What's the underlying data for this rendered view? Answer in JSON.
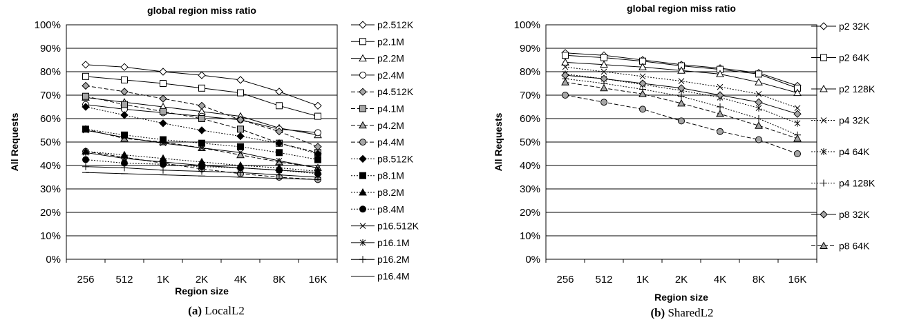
{
  "chart_data": [
    {
      "type": "line",
      "title": "global region miss ratio",
      "xlabel": "Region size",
      "ylabel": "All Requests",
      "categories": [
        "256",
        "512",
        "1K",
        "2K",
        "4K",
        "8K",
        "16K"
      ],
      "ylim": [
        0,
        100
      ],
      "yticks": [
        "0%",
        "10%",
        "20%",
        "30%",
        "40%",
        "50%",
        "60%",
        "70%",
        "80%",
        "90%",
        "100%"
      ],
      "grid": true,
      "legend": "right",
      "caption_label": "(a)",
      "caption_text": " LocalL2",
      "series": [
        {
          "name": "p2.512K",
          "marker": "diamond",
          "fill": "none",
          "dash": "solid",
          "values": [
            83,
            82,
            80,
            78.5,
            76.5,
            71.5,
            65.5
          ]
        },
        {
          "name": "p2.1M",
          "marker": "square",
          "fill": "none",
          "dash": "solid",
          "values": [
            78,
            76.5,
            75,
            73,
            71,
            65.5,
            61
          ]
        },
        {
          "name": "p2.2M",
          "marker": "triangle",
          "fill": "none",
          "dash": "solid",
          "values": [
            69,
            67,
            65,
            63,
            61,
            56,
            53
          ]
        },
        {
          "name": "p2.4M",
          "marker": "circle",
          "fill": "none",
          "dash": "solid",
          "values": [
            66,
            64,
            62.5,
            61,
            59.5,
            55.5,
            54
          ]
        },
        {
          "name": "p4.512K",
          "marker": "diamond",
          "fill": "gray",
          "dash": "dashed",
          "values": [
            74,
            71.5,
            68.5,
            65.5,
            59.5,
            54.5,
            48
          ]
        },
        {
          "name": "p4.1M",
          "marker": "square",
          "fill": "gray",
          "dash": "dashed",
          "values": [
            69.5,
            66,
            63,
            60,
            55.5,
            49.5,
            45.5
          ]
        },
        {
          "name": "p4.2M",
          "marker": "triangle",
          "fill": "gray",
          "dash": "dashed",
          "values": [
            55.5,
            51.5,
            50,
            47.5,
            44.5,
            41.5,
            39
          ]
        },
        {
          "name": "p4.4M",
          "marker": "circle",
          "fill": "gray",
          "dash": "dashed",
          "values": [
            46,
            43.5,
            41,
            38.5,
            36.5,
            35,
            34
          ]
        },
        {
          "name": "p8.512K",
          "marker": "diamond",
          "fill": "black",
          "dash": "dotted",
          "values": [
            65,
            61.5,
            58,
            55,
            52.5,
            49.5,
            45
          ]
        },
        {
          "name": "p8.1M",
          "marker": "square",
          "fill": "black",
          "dash": "dotted",
          "values": [
            55.5,
            53,
            51,
            49.5,
            48,
            45.5,
            42.5
          ]
        },
        {
          "name": "p8.2M",
          "marker": "triangle",
          "fill": "black",
          "dash": "dotted",
          "values": [
            46,
            44.5,
            43,
            41.5,
            40,
            39,
            37.5
          ]
        },
        {
          "name": "p8.4M",
          "marker": "circle",
          "fill": "black",
          "dash": "dotted",
          "values": [
            42.5,
            41,
            40.5,
            39.5,
            39,
            38,
            36.5
          ]
        },
        {
          "name": "p16.512K",
          "marker": "x",
          "fill": "none",
          "dash": "solid",
          "values": [
            55,
            52,
            49.5,
            47.5,
            45.5,
            42,
            39
          ]
        },
        {
          "name": "p16.1M",
          "marker": "star",
          "fill": "none",
          "dash": "solid",
          "values": [
            45.5,
            43,
            41.5,
            40,
            39,
            38,
            37
          ]
        },
        {
          "name": "p16.2M",
          "marker": "plus",
          "fill": "none",
          "dash": "solid",
          "values": [
            39.5,
            39,
            38,
            37.5,
            37,
            36,
            35
          ]
        },
        {
          "name": "p16.4M",
          "marker": "dash",
          "fill": "none",
          "dash": "solid",
          "values": [
            37,
            36.5,
            36,
            35.5,
            35,
            34.5,
            34
          ]
        }
      ]
    },
    {
      "type": "line",
      "title": "global region miss ratio",
      "xlabel": "Region size",
      "ylabel": "All Requests",
      "categories": [
        "256",
        "512",
        "1K",
        "2K",
        "4K",
        "8K",
        "16K"
      ],
      "ylim": [
        0,
        100
      ],
      "yticks": [
        "0%",
        "10%",
        "20%",
        "30%",
        "40%",
        "50%",
        "60%",
        "70%",
        "80%",
        "90%",
        "100%"
      ],
      "grid": true,
      "legend": "right",
      "caption_label": "(b)",
      "caption_text": " SharedL2",
      "series": [
        {
          "name": "p2 32K",
          "marker": "diamond",
          "fill": "none",
          "dash": "solid",
          "values": [
            88,
            87,
            85,
            83,
            81.5,
            79.5,
            74
          ]
        },
        {
          "name": "p2 64K",
          "marker": "square",
          "fill": "none",
          "dash": "solid",
          "values": [
            87,
            86,
            84.5,
            82.5,
            81,
            79,
            73
          ]
        },
        {
          "name": "p2 128K",
          "marker": "triangle",
          "fill": "none",
          "dash": "solid",
          "values": [
            84,
            83,
            82,
            80.5,
            79,
            75.5,
            71
          ]
        },
        {
          "name": "p4 32K",
          "marker": "x",
          "fill": "none",
          "dash": "dotted",
          "values": [
            82,
            80,
            78,
            76,
            73.5,
            70.5,
            64.5
          ]
        },
        {
          "name": "p4 64K",
          "marker": "star",
          "fill": "none",
          "dash": "dotted",
          "values": [
            79,
            77,
            74.5,
            72,
            69,
            64.5,
            58
          ]
        },
        {
          "name": "p4 128K",
          "marker": "plus",
          "fill": "none",
          "dash": "dotted",
          "values": [
            77,
            75,
            72.5,
            69.5,
            65,
            60,
            53
          ]
        },
        {
          "name": "p8 32K",
          "marker": "diamond",
          "fill": "gray",
          "dash": "solid",
          "values": [
            78.5,
            77,
            75,
            73,
            70,
            67,
            62
          ]
        },
        {
          "name": "p8 64K",
          "marker": "triangle",
          "fill": "gray",
          "dash": "dashed",
          "values": [
            75.5,
            73,
            70.5,
            66.5,
            62,
            57,
            51.5
          ]
        },
        {
          "name": "",
          "marker": "circle",
          "fill": "gray",
          "dash": "dashed",
          "values": [
            70,
            67,
            64,
            59,
            54.5,
            51,
            45
          ]
        }
      ]
    }
  ]
}
